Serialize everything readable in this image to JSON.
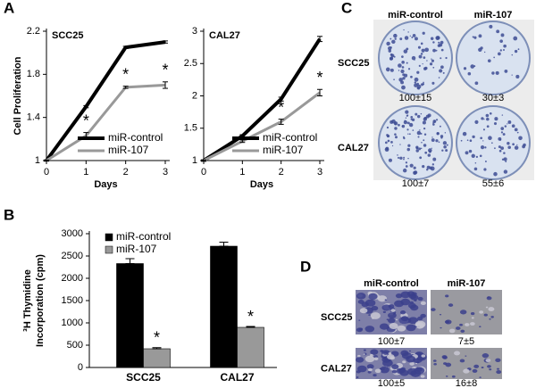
{
  "panel_labels": [
    "A",
    "B",
    "C",
    "D"
  ],
  "chart_data": [
    {
      "type": "line",
      "title": "SCC25",
      "ylabel": [
        "Cell Proliferation"
      ],
      "xlabel": "Days",
      "x": [
        0,
        1,
        2,
        3
      ],
      "xlim": [
        0,
        3
      ],
      "xticks": [
        0,
        1,
        2,
        3
      ],
      "ylim": [
        1,
        2.2
      ],
      "yticks": [
        1,
        1.4,
        1.8,
        2.2
      ],
      "legend": "lower right",
      "series": [
        {
          "name": "miR-control",
          "color": "#000000",
          "values": [
            1.0,
            1.5,
            2.05,
            2.1
          ],
          "errors": [
            0.005,
            0.01,
            0.01,
            0.01
          ],
          "labels": [
            null,
            null,
            null,
            null
          ]
        },
        {
          "name": "miR-107",
          "color": "#999999",
          "values": [
            1.0,
            1.23,
            1.68,
            1.7
          ],
          "errors": [
            0.005,
            0.03,
            0.01,
            0.03
          ],
          "labels": [
            null,
            "*",
            "*",
            "*"
          ]
        }
      ]
    },
    {
      "type": "line",
      "title": "CAL27",
      "xlabel": "Days",
      "x": [
        0,
        1,
        2,
        3
      ],
      "xlim": [
        0,
        3
      ],
      "xticks": [
        0,
        1,
        2,
        3
      ],
      "ylim": [
        1,
        3
      ],
      "yticks": [
        1,
        1.5,
        2,
        2.5,
        3
      ],
      "legend": "lower right",
      "series": [
        {
          "name": "miR-control",
          "color": "#000000",
          "values": [
            1.0,
            1.38,
            1.95,
            2.88
          ],
          "errors": [
            0.01,
            0.02,
            0.03,
            0.04
          ],
          "labels": [
            null,
            null,
            null,
            null
          ]
        },
        {
          "name": "miR-107",
          "color": "#999999",
          "values": [
            1.0,
            1.3,
            1.6,
            2.05
          ],
          "errors": [
            0.01,
            0.02,
            0.04,
            0.05
          ],
          "labels": [
            null,
            null,
            "*",
            "*"
          ]
        }
      ]
    },
    {
      "type": "bar",
      "ylabel": [
        "³H Thymidine",
        "Incorporation (cpm)"
      ],
      "categories": [
        "SCC25",
        "CAL27"
      ],
      "ylim": [
        0,
        3000
      ],
      "yticks": [
        0,
        500,
        1000,
        1500,
        2000,
        2500,
        3000
      ],
      "legend": "upper left",
      "series": [
        {
          "name": "miR-control",
          "color": "#000000",
          "values": [
            2330,
            2720
          ],
          "errors": [
            110,
            90
          ],
          "labels": [
            null,
            null
          ]
        },
        {
          "name": "miR-107",
          "color": "#999999",
          "values": [
            420,
            900
          ],
          "errors": [
            25,
            20
          ],
          "labels": [
            "*",
            "*"
          ]
        }
      ]
    }
  ],
  "image_panels": [
    {
      "columns": [
        "miR-control",
        "miR-107"
      ],
      "rows": [
        {
          "label": "SCC25",
          "values": [
            "100±15",
            "30±3"
          ]
        },
        {
          "label": "CAL27",
          "values": [
            "100±7",
            "55±6"
          ]
        }
      ]
    },
    {
      "columns": [
        "miR-control",
        "miR-107"
      ],
      "rows": [
        {
          "label": "SCC25",
          "values": [
            "100±7",
            "7±5"
          ]
        },
        {
          "label": "CAL27",
          "values": [
            "100±5",
            "16±8"
          ]
        }
      ]
    }
  ]
}
